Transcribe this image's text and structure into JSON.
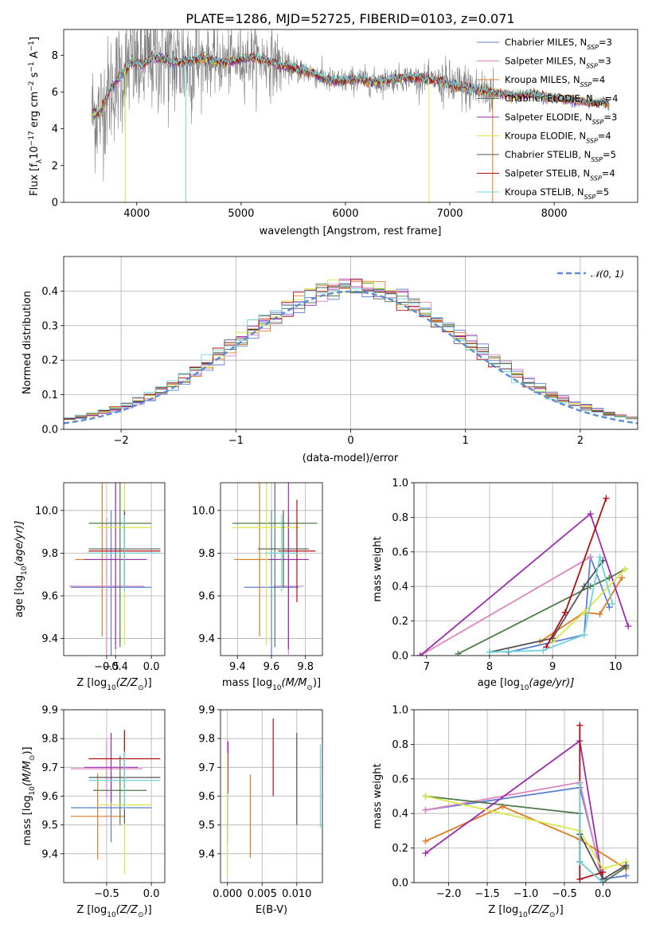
{
  "colors": {
    "chabrier_miles": "#5b7fd6",
    "salpeter_miles": "#de84bf",
    "kroupa_miles": "#e07a20",
    "chabrier_elodie": "#4f7a4a",
    "salpeter_elodie": "#9a2cae",
    "kroupa_elodie": "#d9e64a",
    "chabrier_stelib": "#555555",
    "salpeter_stelib": "#b01010",
    "kroupa_stelib": "#6fd4dc",
    "data": "#808080",
    "normal": "#5b8ad6"
  },
  "chart_data": [
    {
      "id": "spectrum",
      "type": "line",
      "title": "PLATE=1286, MJD=52725, FIBERID=0103, z=0.071",
      "xlabel": "wavelength [Angstrom, rest frame]",
      "ylabel_parts": [
        "Flux [f",
        "λ",
        "10",
        "−17",
        " erg cm",
        "−2",
        " s",
        "−1",
        " A",
        "−1",
        "]"
      ],
      "xlim": [
        3300,
        8800
      ],
      "ylim": [
        0,
        9.4
      ],
      "xticks": [
        "4000",
        "5000",
        "6000",
        "7000",
        "8000"
      ],
      "yticks": [
        "0",
        "2",
        "4",
        "6",
        "8"
      ],
      "legend": [
        {
          "base": "Chabrier MILES, N",
          "sub": "SSP",
          "val": "=3",
          "color": "chabrier_miles"
        },
        {
          "base": "Salpeter MILES, N",
          "sub": "SSP",
          "val": "=3",
          "color": "salpeter_miles"
        },
        {
          "base": "Kroupa MILES, N",
          "sub": "SSP",
          "val": "=4",
          "color": "kroupa_miles"
        },
        {
          "base": "Chabrier ELODIE, N",
          "sub": "SSP",
          "val": "=4",
          "color": "chabrier_elodie"
        },
        {
          "base": "Salpeter ELODIE, N",
          "sub": "SSP",
          "val": "=3",
          "color": "salpeter_elodie"
        },
        {
          "base": "Kroupa ELODIE, N",
          "sub": "SSP",
          "val": "=4",
          "color": "kroupa_elodie"
        },
        {
          "base": "Chabrier STELIB, N",
          "sub": "SSP",
          "val": "=5",
          "color": "chabrier_stelib"
        },
        {
          "base": "Salpeter STELIB, N",
          "sub": "SSP",
          "val": "=4",
          "color": "salpeter_stelib"
        },
        {
          "base": "Kroupa STELIB, N",
          "sub": "SSP",
          "val": "=5",
          "color": "kroupa_stelib"
        }
      ],
      "model_x": [
        3570,
        3650,
        3750,
        3850,
        3950,
        4050,
        4150,
        4250,
        4350,
        4500,
        4650,
        4800,
        4950,
        5100,
        5250,
        5400,
        5550,
        5700,
        5850,
        6000,
        6150,
        6300,
        6450,
        6600,
        6750,
        6900,
        7050,
        7200,
        7350,
        7500,
        7650,
        7800,
        7950,
        8100,
        8250,
        8400,
        8530
      ],
      "model_y": [
        4.8,
        4.9,
        6.2,
        6.9,
        7.6,
        7.4,
        7.9,
        7.8,
        7.6,
        7.7,
        7.8,
        7.6,
        7.7,
        7.9,
        7.7,
        7.4,
        7.2,
        7.0,
        6.6,
        6.6,
        6.7,
        6.5,
        6.7,
        6.8,
        6.7,
        6.6,
        6.3,
        6.2,
        6.0,
        5.9,
        5.8,
        5.9,
        5.7,
        5.6,
        5.5,
        5.4,
        5.4
      ],
      "data_noise_amplitude": 1.2,
      "data_xlim": [
        3570,
        7420
      ]
    },
    {
      "id": "residuals",
      "type": "step",
      "xlabel": "(data-model)/error",
      "ylabel": "Normed distribution",
      "xlim": [
        -2.5,
        2.5
      ],
      "ylim": [
        0,
        0.5
      ],
      "xticks": [
        "−2",
        "−1",
        "0",
        "1",
        "2"
      ],
      "yticks": [
        "0.0",
        "0.1",
        "0.2",
        "0.3",
        "0.4"
      ],
      "legend": [
        {
          "label": "𝒩(0, 1)",
          "color": "normal"
        }
      ],
      "bin_width": 0.1
    },
    {
      "id": "age-vs-Z",
      "type": "errorbar",
      "xlabel_parts": [
        "Z [log",
        "10",
        "(Z/Z",
        "⊙",
        ")]"
      ],
      "ylabel_parts": [
        "age  [log",
        "10",
        "(age/yr)]"
      ],
      "xlim": [
        -0.98,
        0.15
      ],
      "ylim": [
        9.32,
        10.13
      ],
      "xticks": [
        "−0.5",
        "−0.4",
        "0.0"
      ],
      "xtick_vals": [
        -0.5,
        -0.4,
        0.0
      ],
      "yticks": [
        "9.4",
        "9.6",
        "9.8",
        "10.0"
      ],
      "ytick_vals": [
        9.4,
        9.6,
        9.8,
        10.0
      ],
      "points": [
        {
          "x": -0.45,
          "xe": 0.45,
          "y": 9.64,
          "ye": 0.36,
          "color": "chabrier_miles"
        },
        {
          "x": -0.5,
          "xe": 0.42,
          "y": 9.645,
          "ye": 0.32,
          "color": "salpeter_miles"
        },
        {
          "x": -0.55,
          "xe": 0.3,
          "y": 9.77,
          "ye": 0.36,
          "color": "kroupa_miles"
        },
        {
          "x": -0.35,
          "xe": 0.35,
          "y": 9.94,
          "ye": 0.58,
          "color": "chabrier_elodie"
        },
        {
          "x": -0.4,
          "xe": 0.35,
          "y": 9.77,
          "ye": 0.42,
          "color": "salpeter_elodie"
        },
        {
          "x": -0.3,
          "xe": 0.3,
          "y": 9.92,
          "ye": 0.55,
          "color": "kroupa_elodie"
        },
        {
          "x": -0.3,
          "xe": 0.4,
          "y": 9.82,
          "ye": 0.18,
          "color": "chabrier_stelib"
        },
        {
          "x": -0.3,
          "xe": 0.4,
          "y": 9.81,
          "ye": 0.18,
          "color": "salpeter_stelib"
        },
        {
          "x": -0.3,
          "xe": 0.4,
          "y": 9.8,
          "ye": 0.18,
          "color": "kroupa_stelib"
        }
      ]
    },
    {
      "id": "age-vs-mass",
      "type": "errorbar",
      "xlabel_parts": [
        "mass [log",
        "10",
        "(M/M",
        "⊙",
        ")]"
      ],
      "ylabel_parts": [],
      "xlim": [
        9.3,
        9.9
      ],
      "ylim": [
        9.32,
        10.13
      ],
      "xticks": [
        "9.4",
        "9.6",
        "9.8"
      ],
      "xtick_vals": [
        9.4,
        9.6,
        9.8
      ],
      "yticks": [
        "9.4",
        "9.6",
        "9.8",
        "10.0"
      ],
      "ytick_vals": [
        9.4,
        9.6,
        9.8,
        10.0
      ],
      "points": [
        {
          "x": 9.6,
          "xe": 0.16,
          "y": 9.64,
          "ye": 0.36,
          "color": "chabrier_miles"
        },
        {
          "x": 9.7,
          "xe": 0.09,
          "y": 9.645,
          "ye": 0.32,
          "color": "salpeter_miles"
        },
        {
          "x": 9.53,
          "xe": 0.15,
          "y": 9.77,
          "ye": 0.36,
          "color": "kroupa_miles"
        },
        {
          "x": 9.62,
          "xe": 0.25,
          "y": 9.94,
          "ye": 0.58,
          "color": "chabrier_elodie"
        },
        {
          "x": 9.7,
          "xe": 0.12,
          "y": 9.77,
          "ye": 0.42,
          "color": "salpeter_elodie"
        },
        {
          "x": 9.57,
          "xe": 0.2,
          "y": 9.92,
          "ye": 0.55,
          "color": "kroupa_elodie"
        },
        {
          "x": 9.67,
          "xe": 0.15,
          "y": 9.82,
          "ye": 0.18,
          "color": "chabrier_stelib"
        },
        {
          "x": 9.75,
          "xe": 0.11,
          "y": 9.81,
          "ye": 0.24,
          "color": "salpeter_stelib"
        },
        {
          "x": 9.66,
          "xe": 0.1,
          "y": 9.8,
          "ye": 0.18,
          "color": "kroupa_stelib"
        }
      ]
    },
    {
      "id": "massweight-vs-age",
      "type": "line",
      "xlabel_parts": [
        "age  [log",
        "10",
        "(age/yr)]"
      ],
      "ylabel": "mass weight",
      "xlim": [
        6.8,
        10.35
      ],
      "ylim": [
        0,
        1
      ],
      "xticks": [
        "7",
        "8",
        "9",
        "10"
      ],
      "xtick_vals": [
        7,
        8,
        9,
        10
      ],
      "yticks": [
        "0.0",
        "0.2",
        "0.4",
        "0.6",
        "0.8",
        "1.0"
      ],
      "ytick_vals": [
        0,
        0.2,
        0.4,
        0.6,
        0.8,
        1.0
      ],
      "series": [
        {
          "color": "chabrier_miles",
          "x": [
            8.3,
            9.5,
            9.6,
            9.9
          ],
          "y": [
            0.02,
            0.12,
            0.57,
            0.28
          ]
        },
        {
          "color": "salpeter_miles",
          "x": [
            6.9,
            9.6
          ],
          "y": [
            0.0,
            0.57
          ]
        },
        {
          "color": "kroupa_miles",
          "x": [
            8.8,
            9.5,
            9.75,
            10.1
          ],
          "y": [
            0.08,
            0.25,
            0.24,
            0.45
          ]
        },
        {
          "color": "chabrier_elodie",
          "x": [
            7.5,
            9.6,
            9.9,
            10.15
          ],
          "y": [
            0.01,
            0.4,
            0.45,
            0.5
          ]
        },
        {
          "color": "salpeter_elodie",
          "x": [
            6.9,
            9.6,
            10.2
          ],
          "y": [
            0.0,
            0.82,
            0.17
          ]
        },
        {
          "color": "kroupa_elodie",
          "x": [
            9.0,
            9.5,
            10.15
          ],
          "y": [
            0.08,
            0.25,
            0.5
          ]
        },
        {
          "color": "chabrier_stelib",
          "x": [
            8.0,
            9.0,
            9.5,
            9.8
          ],
          "y": [
            0.02,
            0.1,
            0.4,
            0.55
          ]
        },
        {
          "color": "salpeter_stelib",
          "x": [
            8.9,
            9.2,
            9.85
          ],
          "y": [
            0.05,
            0.25,
            0.91
          ]
        },
        {
          "color": "kroupa_stelib",
          "x": [
            8.0,
            8.85,
            9.5,
            9.75,
            9.95
          ],
          "y": [
            0.02,
            0.03,
            0.12,
            0.57,
            0.3
          ]
        }
      ]
    },
    {
      "id": "mass-vs-Z",
      "type": "errorbar",
      "xlabel_parts": [
        "Z [log",
        "10",
        "(Z/Z",
        "⊙",
        ")]"
      ],
      "ylabel_parts": [
        "mass [log",
        "10",
        "(M/M",
        "⊙",
        ")]"
      ],
      "xlim": [
        -0.98,
        0.15
      ],
      "ylim": [
        9.3,
        9.9
      ],
      "xticks": [
        "−0.5",
        "0.0"
      ],
      "xtick_vals": [
        -0.5,
        0.0
      ],
      "yticks": [
        "9.4",
        "9.5",
        "9.6",
        "9.7",
        "9.8",
        "9.9"
      ],
      "ytick_vals": [
        9.4,
        9.5,
        9.6,
        9.7,
        9.8,
        9.9
      ],
      "points": [
        {
          "x": -0.45,
          "xe": 0.45,
          "y": 9.56,
          "ye": 0.12,
          "color": "chabrier_miles"
        },
        {
          "x": -0.5,
          "xe": 0.4,
          "y": 9.695,
          "ye": 0.1,
          "color": "salpeter_miles"
        },
        {
          "x": -0.6,
          "xe": 0.3,
          "y": 9.53,
          "ye": 0.15,
          "color": "kroupa_miles"
        },
        {
          "x": -0.35,
          "xe": 0.3,
          "y": 9.62,
          "ye": 0.12,
          "color": "chabrier_elodie"
        },
        {
          "x": -0.45,
          "xe": 0.3,
          "y": 9.7,
          "ye": 0.12,
          "color": "salpeter_elodie"
        },
        {
          "x": -0.3,
          "xe": 0.3,
          "y": 9.57,
          "ye": 0.24,
          "color": "kroupa_elodie"
        },
        {
          "x": -0.3,
          "xe": 0.4,
          "y": 9.665,
          "ye": 0.16,
          "color": "chabrier_stelib"
        },
        {
          "x": -0.3,
          "xe": 0.4,
          "y": 9.73,
          "ye": 0.1,
          "color": "salpeter_stelib"
        },
        {
          "x": -0.3,
          "xe": 0.4,
          "y": 9.655,
          "ye": 0.1,
          "color": "kroupa_stelib"
        }
      ]
    },
    {
      "id": "mass-vs-EBV",
      "type": "errorbar",
      "xlabel": "E(B-V)",
      "xlim": [
        -0.001,
        0.0137
      ],
      "ylim": [
        9.3,
        9.9
      ],
      "xticks": [
        "0.000",
        "0.005",
        "0.010"
      ],
      "xtick_vals": [
        0.0,
        0.005,
        0.01
      ],
      "yticks": [
        "9.4",
        "9.5",
        "9.6",
        "9.7",
        "9.8",
        "9.9"
      ],
      "ytick_vals": [
        9.4,
        9.5,
        9.6,
        9.7,
        9.8,
        9.9
      ],
      "points": [
        {
          "x": 0.0,
          "y": 9.56,
          "ye": 0.12,
          "color": "chabrier_miles"
        },
        {
          "x": 0.0,
          "y": 9.695,
          "ye": 0.1,
          "color": "salpeter_miles"
        },
        {
          "x": 0.0033,
          "y": 9.53,
          "ye": 0.145,
          "color": "kroupa_miles"
        },
        {
          "x": 0.0,
          "y": 9.62,
          "ye": 0.12,
          "color": "chabrier_elodie"
        },
        {
          "x": 0.0001,
          "y": 9.7,
          "ye": 0.09,
          "color": "salpeter_elodie"
        },
        {
          "x": 0.0,
          "y": 9.54,
          "ye": 0.21,
          "color": "kroupa_elodie"
        },
        {
          "x": 0.01,
          "y": 9.66,
          "ye": 0.16,
          "color": "chabrier_stelib"
        },
        {
          "x": 0.0066,
          "y": 9.735,
          "ye": 0.135,
          "color": "salpeter_stelib"
        },
        {
          "x": 0.0134,
          "y": 9.635,
          "ye": 0.145,
          "color": "kroupa_stelib"
        }
      ]
    },
    {
      "id": "massweight-vs-Z",
      "type": "line",
      "xlabel_parts": [
        "Z [log",
        "10",
        "(Z/Z",
        "⊙",
        ")]"
      ],
      "ylabel": "mass weight",
      "xlim": [
        -2.45,
        0.45
      ],
      "ylim": [
        0,
        1
      ],
      "xticks": [
        "−2.0",
        "−1.5",
        "−1.0",
        "−0.5",
        "0.0"
      ],
      "xtick_vals": [
        -2.0,
        -1.5,
        -1.0,
        -0.5,
        0.0
      ],
      "yticks": [
        "0.0",
        "0.2",
        "0.4",
        "0.6",
        "0.8",
        "1.0"
      ],
      "ytick_vals": [
        0,
        0.2,
        0.4,
        0.6,
        0.8,
        1.0
      ],
      "series": [
        {
          "color": "chabrier_miles",
          "x": [
            -2.3,
            -0.3,
            0.0,
            0.3
          ],
          "y": [
            0.42,
            0.55,
            0.02,
            0.04
          ]
        },
        {
          "color": "salpeter_miles",
          "x": [
            -2.3,
            -0.3,
            0.0
          ],
          "y": [
            0.42,
            0.58,
            0.0
          ]
        },
        {
          "color": "kroupa_miles",
          "x": [
            -2.3,
            -1.3,
            -0.3,
            0.3
          ],
          "y": [
            0.24,
            0.44,
            0.25,
            0.08
          ]
        },
        {
          "color": "chabrier_elodie",
          "x": [
            -2.3,
            -0.3,
            -0.3,
            0.0,
            0.3
          ],
          "y": [
            0.5,
            0.4,
            0.12,
            0.0,
            0.09
          ]
        },
        {
          "color": "salpeter_elodie",
          "x": [
            -2.3,
            -0.3,
            0.0
          ],
          "y": [
            0.17,
            0.82,
            0.0
          ]
        },
        {
          "color": "kroupa_elodie",
          "x": [
            -2.3,
            -0.3,
            0.0,
            0.3
          ],
          "y": [
            0.5,
            0.3,
            0.08,
            0.12
          ]
        },
        {
          "color": "chabrier_stelib",
          "x": [
            -0.3,
            -0.3,
            0.0,
            0.3
          ],
          "y": [
            0.12,
            0.28,
            0.02,
            0.1
          ]
        },
        {
          "color": "salpeter_stelib",
          "x": [
            -0.3,
            -0.3,
            0.0
          ],
          "y": [
            0.91,
            0.02,
            0.06
          ]
        },
        {
          "color": "kroupa_stelib",
          "x": [
            -0.3,
            -0.3,
            0.0
          ],
          "y": [
            0.57,
            0.12,
            0.0
          ]
        }
      ]
    }
  ]
}
